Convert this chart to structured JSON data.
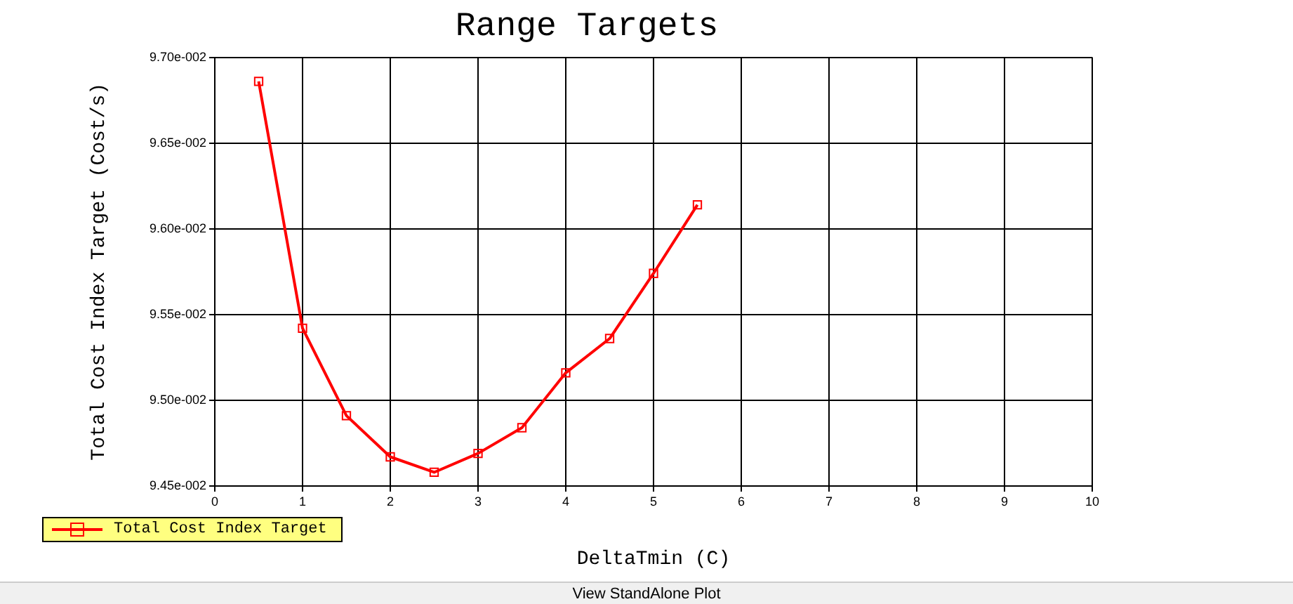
{
  "chart_data": {
    "type": "line",
    "title": "Range Targets",
    "xlabel": "DeltaTmin (C)",
    "ylabel": "Total Cost Index Target (Cost/s)",
    "x": [
      0.5,
      1,
      1.5,
      2,
      2.5,
      3,
      3.5,
      4,
      4.5,
      5,
      5.5
    ],
    "series": [
      {
        "name": "Total Cost Index Target",
        "color": "#ff0000",
        "values": [
          0.09686,
          0.09542,
          0.09491,
          0.09467,
          0.09458,
          0.09469,
          0.09484,
          0.09516,
          0.09536,
          0.09574,
          0.09614
        ]
      }
    ],
    "xlim": [
      0,
      10
    ],
    "xticks": [
      0,
      1,
      2,
      3,
      4,
      5,
      6,
      7,
      8,
      9,
      10
    ],
    "ylim": [
      0.0945,
      0.097
    ],
    "yticks": [
      {
        "value": 0.0945,
        "label": "9.45e-002"
      },
      {
        "value": 0.095,
        "label": "9.50e-002"
      },
      {
        "value": 0.0955,
        "label": "9.55e-002"
      },
      {
        "value": 0.096,
        "label": "9.60e-002"
      },
      {
        "value": 0.0965,
        "label": "9.65e-002"
      },
      {
        "value": 0.097,
        "label": "9.70e-002"
      }
    ],
    "grid": true,
    "legend": "bottom left",
    "marker": "square",
    "line_style": "solid",
    "annotations": [
      "View StandAlone Plot"
    ]
  }
}
